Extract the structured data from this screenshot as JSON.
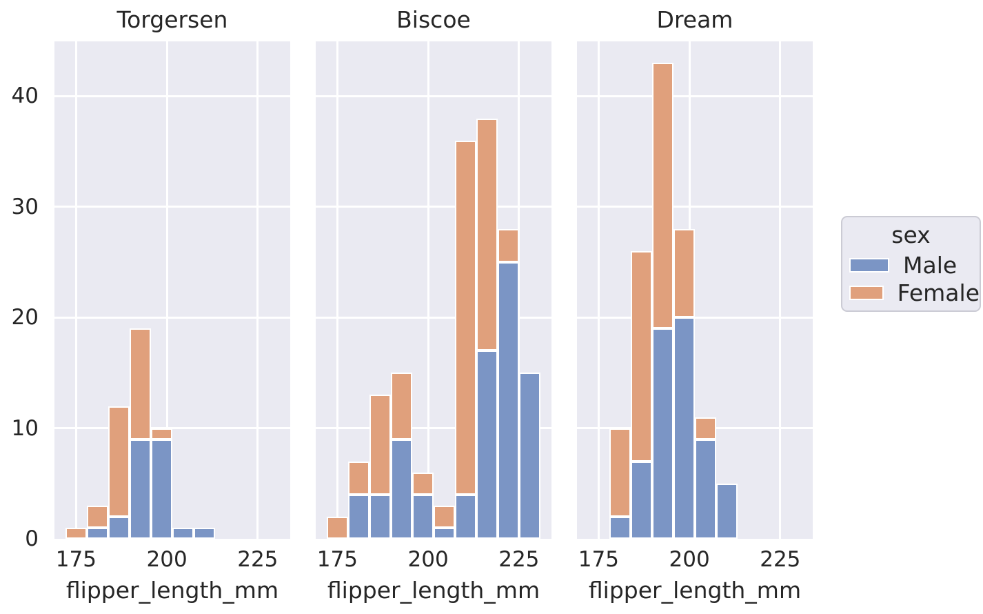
{
  "figure": {
    "background": "#ffffff",
    "panel_background": "#eaeaf2",
    "grid_color": "#ffffff",
    "text_color": "#262626"
  },
  "legend": {
    "title": "sex",
    "entries": [
      {
        "label": "Male",
        "color": "#7b95c5"
      },
      {
        "label": "Female",
        "color": "#e0a07c"
      }
    ]
  },
  "chart_data": {
    "type": "bar",
    "subtype": "faceted-stacked-histogram",
    "xlabel": "flipper_length_mm",
    "legend_title": "sex",
    "legend_position": "right-outside",
    "grid": true,
    "series_order": [
      "Male",
      "Female"
    ],
    "colors": {
      "Male": "#7b95c5",
      "Female": "#e0a07c"
    },
    "x_ticks": [
      175,
      200,
      225
    ],
    "y_ticks": [
      0,
      10,
      20,
      30,
      40
    ],
    "xlim": [
      169.05,
      233.95
    ],
    "ylim": [
      0,
      44.95
    ],
    "bin_edges": [
      172,
      177.9,
      183.8,
      189.7,
      195.6,
      201.5,
      207.4,
      213.3,
      219.2,
      225.1,
      231
    ],
    "facets": [
      {
        "title": "Torgersen",
        "Male": [
          0,
          1,
          2,
          9,
          9,
          1,
          1,
          0,
          0,
          0
        ],
        "Female": [
          1,
          2,
          10,
          10,
          1,
          0,
          0,
          0,
          0,
          0
        ]
      },
      {
        "title": "Biscoe",
        "Male": [
          0,
          4,
          4,
          9,
          4,
          1,
          4,
          17,
          25,
          15
        ],
        "Female": [
          2,
          3,
          9,
          6,
          2,
          2,
          32,
          21,
          3,
          0
        ]
      },
      {
        "title": "Dream",
        "Male": [
          0,
          2,
          7,
          19,
          20,
          9,
          5,
          0,
          0,
          0
        ],
        "Female": [
          0,
          8,
          19,
          24,
          8,
          2,
          0,
          0,
          0,
          0
        ]
      }
    ]
  }
}
